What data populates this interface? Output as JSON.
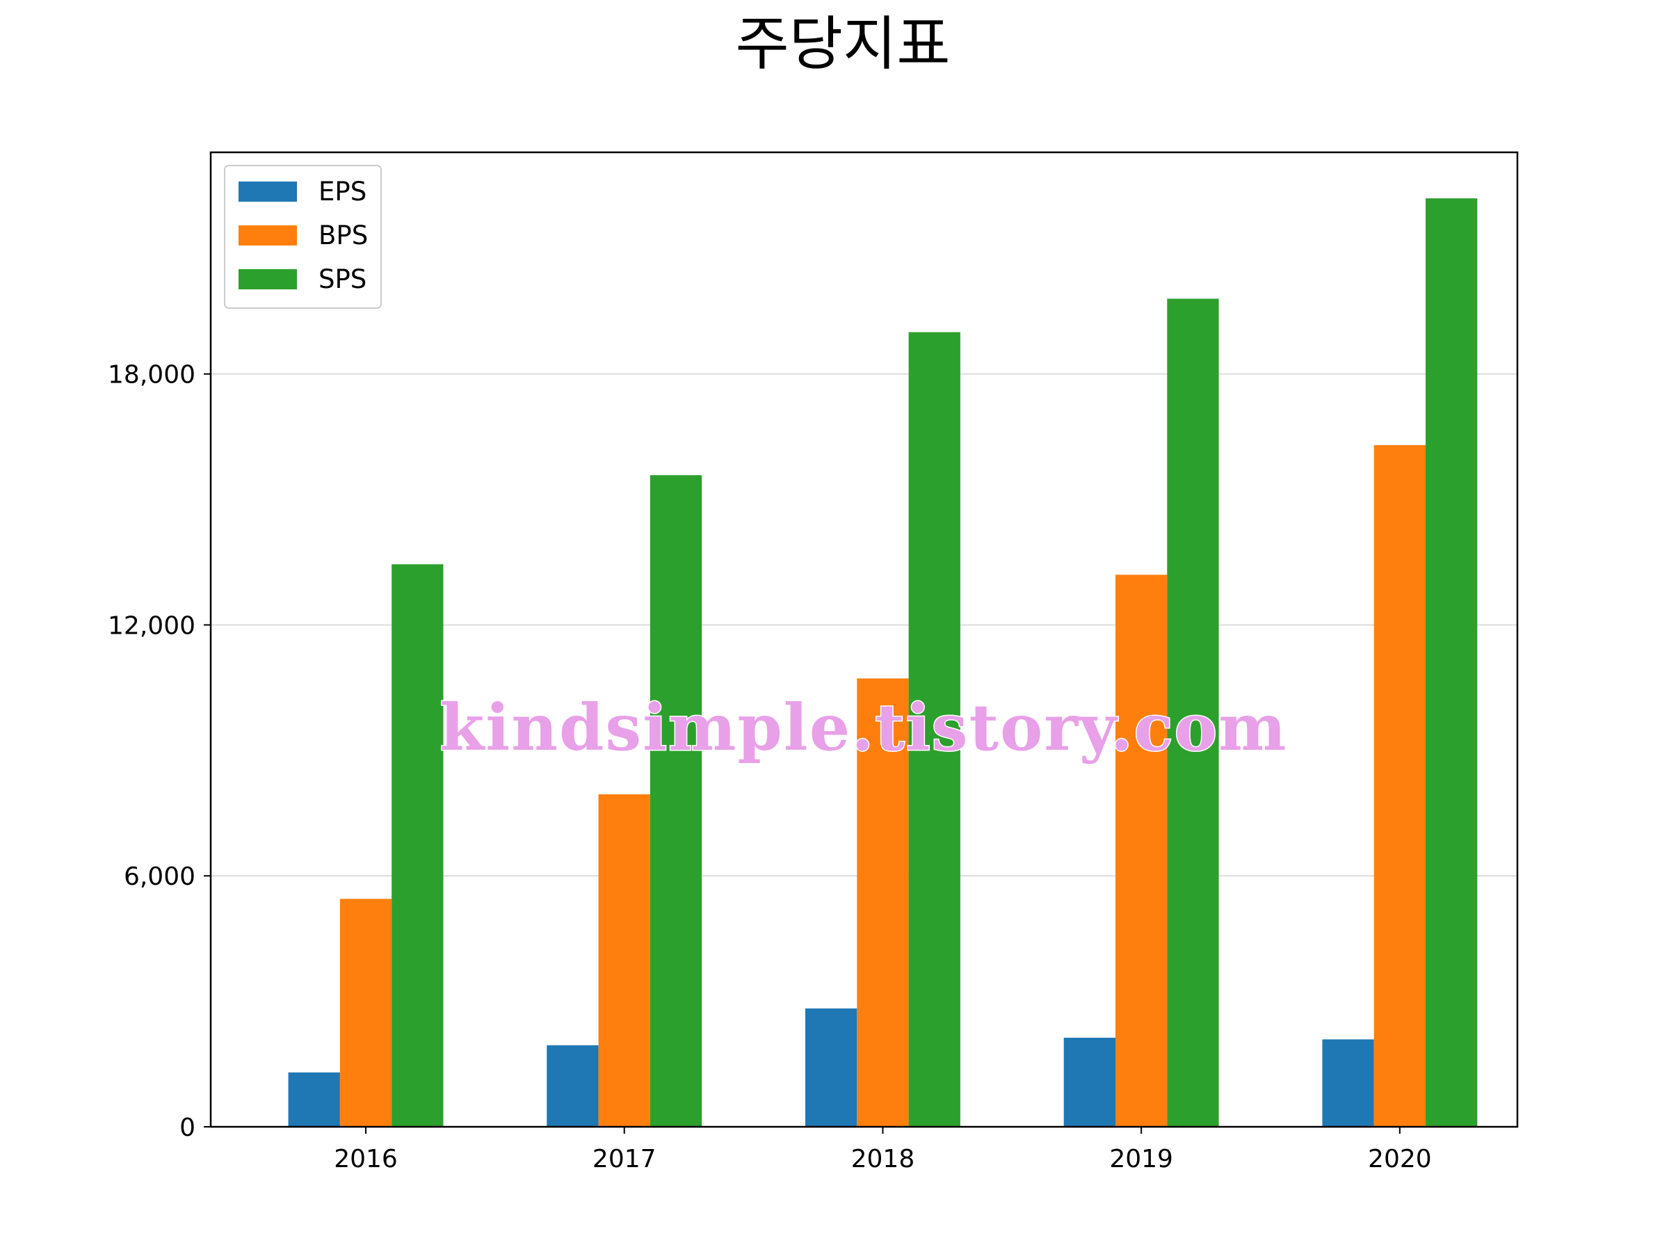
{
  "chart_data": {
    "type": "bar",
    "title": "주당지표",
    "xlabel": "",
    "ylabel": "",
    "categories": [
      "2016",
      "2017",
      "2018",
      "2019",
      "2020"
    ],
    "series": [
      {
        "name": "EPS",
        "color": "#1f77b4",
        "values": [
          1300,
          1950,
          2830,
          2130,
          2090
        ]
      },
      {
        "name": "BPS",
        "color": "#ff7f0e",
        "values": [
          5450,
          7950,
          10720,
          13200,
          16300
        ]
      },
      {
        "name": "SPS",
        "color": "#2ca02c",
        "values": [
          13450,
          15580,
          19000,
          19800,
          22200
        ]
      }
    ],
    "ylim": [
      0,
      23300
    ],
    "yticks": [
      0,
      6000,
      12000,
      18000
    ],
    "ytick_labels": [
      "0",
      "6,000",
      "12,000",
      "18,000"
    ],
    "grid": {
      "axis": "y",
      "visible": true,
      "color": "#d3d3d3"
    },
    "legend": {
      "position": "upper-left"
    },
    "watermark": "kindsimple.tistory.com"
  }
}
